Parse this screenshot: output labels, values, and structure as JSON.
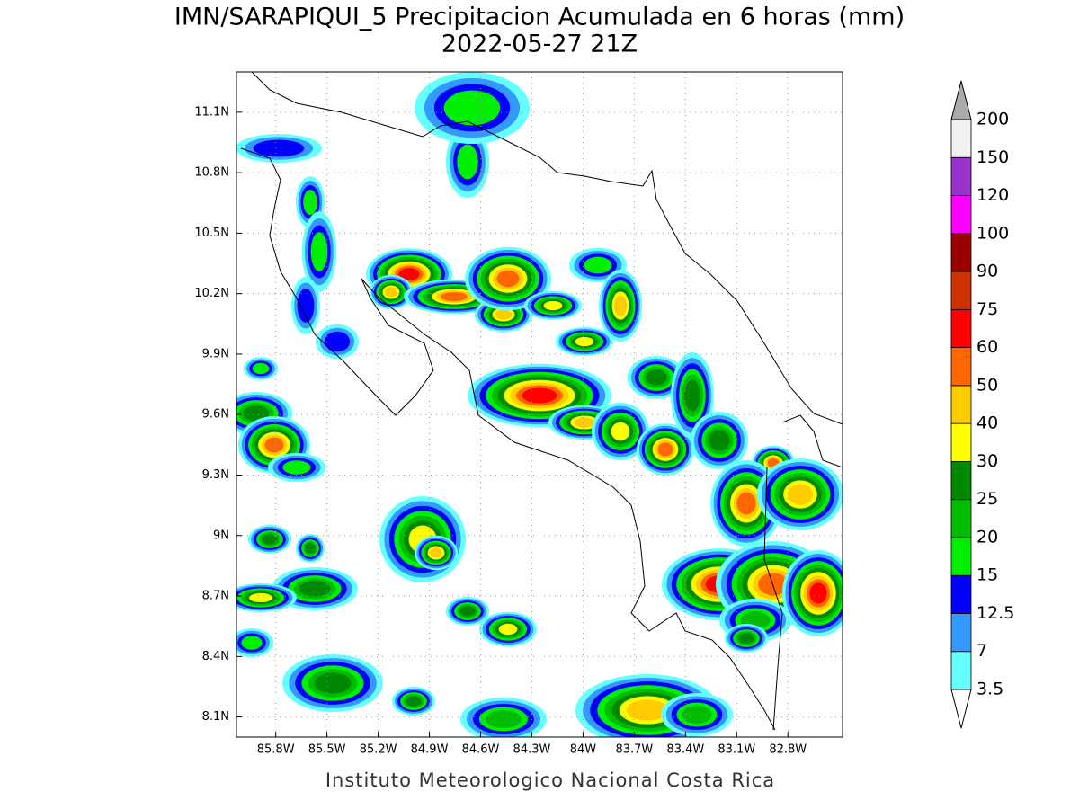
{
  "title": "IMN/SARAPIQUI_5 Precipitacion Acumulada en 6 horas (mm)",
  "subtitle": "2022-05-27 21Z",
  "footer": "Instituto Meteorologico Nacional Costa Rica",
  "map": {
    "xlim": [
      -86.03,
      -82.48
    ],
    "ylim": [
      8.0,
      11.3
    ],
    "xticks": [
      {
        "value": -85.8,
        "label": "85.8W"
      },
      {
        "value": -85.5,
        "label": "85.5W"
      },
      {
        "value": -85.2,
        "label": "85.2W"
      },
      {
        "value": -84.9,
        "label": "84.9W"
      },
      {
        "value": -84.6,
        "label": "84.6W"
      },
      {
        "value": -84.3,
        "label": "84.3W"
      },
      {
        "value": -84.0,
        "label": "84W"
      },
      {
        "value": -83.7,
        "label": "83.7W"
      },
      {
        "value": -83.4,
        "label": "83.4W"
      },
      {
        "value": -83.1,
        "label": "83.1W"
      },
      {
        "value": -82.8,
        "label": "82.8W"
      }
    ],
    "yticks": [
      {
        "value": 11.1,
        "label": "11.1N"
      },
      {
        "value": 10.8,
        "label": "10.8N"
      },
      {
        "value": 10.5,
        "label": "10.5N"
      },
      {
        "value": 10.2,
        "label": "10.2N"
      },
      {
        "value": 9.9,
        "label": "9.9N"
      },
      {
        "value": 9.6,
        "label": "9.6N"
      },
      {
        "value": 9.3,
        "label": "9.3N"
      },
      {
        "value": 9.0,
        "label": "9N"
      },
      {
        "value": 8.7,
        "label": "8.7N"
      },
      {
        "value": 8.4,
        "label": "8.4N"
      },
      {
        "value": 8.1,
        "label": "8.1N"
      }
    ],
    "grid": true
  },
  "colorbar": {
    "levels": [
      3.5,
      7,
      12.5,
      15,
      20,
      25,
      30,
      40,
      50,
      60,
      75,
      90,
      100,
      120,
      150,
      200
    ],
    "colors": [
      "#66ffff",
      "#3399ff",
      "#0000ff",
      "#00ee00",
      "#00bb00",
      "#008800",
      "#ffff00",
      "#ffcc00",
      "#ff6600",
      "#ff0000",
      "#cc3300",
      "#990000",
      "#ff00ff",
      "#9933cc",
      "#f0f0f0"
    ],
    "over_color": "#aaaaaa",
    "under_color": "#ffffff"
  }
}
